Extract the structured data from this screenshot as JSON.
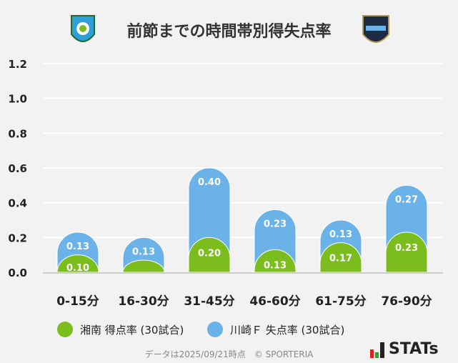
{
  "title": "前節までの時間帯別得失点率",
  "logos": {
    "left": "湘南ベルマーレ",
    "right": "KAWASAKI"
  },
  "colors": {
    "shonan": "#7cbd1e",
    "kawasaki": "#6ab2e7",
    "grid": "#ffffff",
    "text": "#222222"
  },
  "chart_data": {
    "type": "bar",
    "stacked": true,
    "categories": [
      "0-15分",
      "16-30分",
      "31-45分",
      "46-60分",
      "61-75分",
      "76-90分"
    ],
    "series": [
      {
        "name": "湘南 得点率 (30試合)",
        "values": [
          0.1,
          0.07,
          0.2,
          0.13,
          0.17,
          0.23
        ],
        "labels": [
          "0.10",
          "",
          "0.20",
          "0.13",
          "0.17",
          "0.23"
        ]
      },
      {
        "name": "川崎Ｆ 失点率 (30試合)",
        "values": [
          0.13,
          0.13,
          0.4,
          0.23,
          0.13,
          0.27
        ],
        "labels": [
          "0.13",
          "0.13",
          "0.40",
          "0.23",
          "0.13",
          "0.27"
        ]
      }
    ],
    "yticks": [
      "0.0",
      "0.2",
      "0.4",
      "0.6",
      "0.8",
      "1.0",
      "1.2"
    ],
    "ylim": [
      0,
      1.2
    ],
    "grid": true,
    "legend": "bottom"
  },
  "footer": "データは2025/09/21時点　© SPORTERIA",
  "brand": "STATs"
}
